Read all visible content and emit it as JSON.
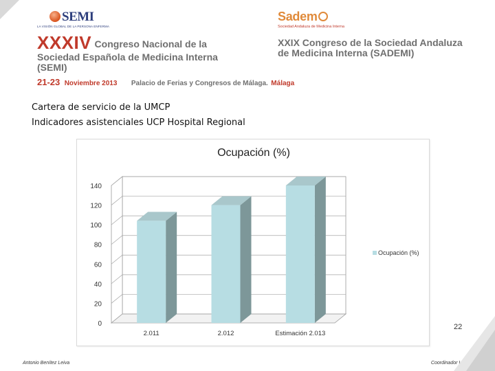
{
  "header": {
    "semi_logo": {
      "word": "SEMI",
      "tagline": "LA VISIÓN GLOBAL DE LA PERSONA ENFERMA"
    },
    "sademi_logo": {
      "word": "Sadem",
      "tagline": "Sociedad Andaluza de Medicina Interna"
    },
    "congress_left": {
      "roman": "XXXIV",
      "line1": "Congreso Nacional de la",
      "line2": "Sociedad Española de Medicina Interna",
      "line3": "(SEMI)"
    },
    "congress_right": {
      "line1": "XXIX Congreso de la Sociedad Andaluza",
      "line2": "de Medicina Interna (SADEMI)"
    },
    "dates": "21-23",
    "month": "Noviembre 2013",
    "place": "Palacio de Ferias y Congresos de Málaga.",
    "city": "Málaga"
  },
  "slide": {
    "line1": "Cartera de servicio de la UMCP",
    "line2": "Indicadores asistenciales UCP Hospital Regional"
  },
  "chart_data": {
    "type": "bar",
    "title": "Ocupación (%)",
    "categories": [
      "2.011",
      "2.012",
      "Estimación 2.013"
    ],
    "series": [
      {
        "name": "Ocupación (%)",
        "values": [
          104,
          120,
          140
        ]
      }
    ],
    "ylim": [
      0,
      140
    ],
    "yticks": [
      "0",
      "20",
      "40",
      "60",
      "80",
      "100",
      "120",
      "140"
    ],
    "xlabel": "",
    "ylabel": "",
    "grid": true,
    "legend_position": "right",
    "bar_color": "#b7dde3",
    "bar_side_color": "#7d9799"
  },
  "footer": {
    "page_number": "22",
    "left": "Antonio Benítez Leiva",
    "right": "Coordinador UMCP"
  }
}
